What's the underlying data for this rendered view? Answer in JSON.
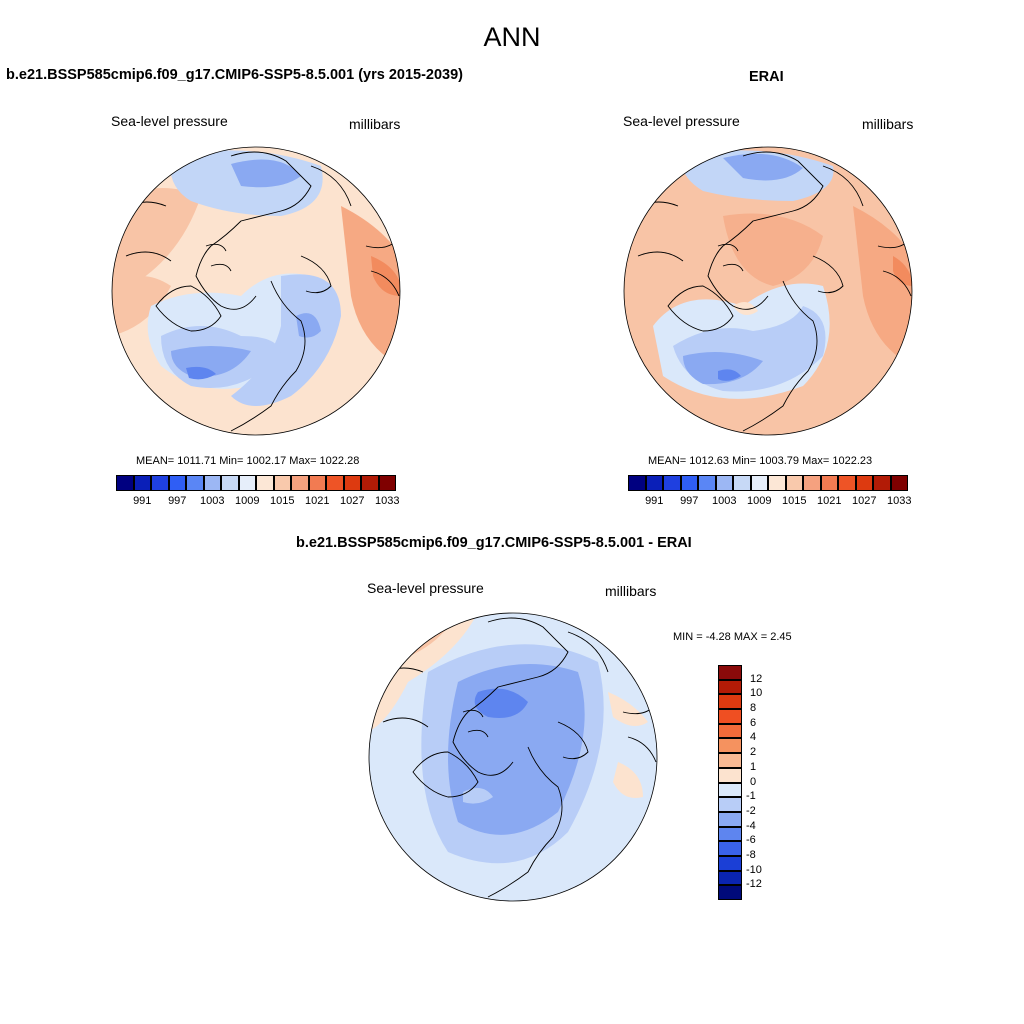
{
  "main_title": "ANN",
  "panels": [
    {
      "title": "b.e21.BSSP585cmip6.f09_g17.CMIP6-SSP5-8.5.001 (yrs 2015-2039)",
      "variable": "Sea-level pressure",
      "units": "millibars",
      "stats": "MEAN= 1011.71  Min= 1002.17  Max= 1022.28"
    },
    {
      "title": "ERAI",
      "variable": "Sea-level pressure",
      "units": "millibars",
      "stats": "MEAN= 1012.63  Min= 1003.79  Max= 1022.23"
    },
    {
      "title": "b.e21.BSSP585cmip6.f09_g17.CMIP6-SSP5-8.5.001 - ERAI",
      "variable": "Sea-level pressure",
      "units": "millibars",
      "stats": "MIN =  -4.28 MAX =   2.45"
    }
  ],
  "colorbar_abs": {
    "tick_labels": [
      "991",
      "997",
      "1003",
      "1009",
      "1015",
      "1021",
      "1027",
      "1033"
    ],
    "colors": [
      "#000080",
      "#0a1fb8",
      "#1f40e0",
      "#2f5ef5",
      "#5a86f5",
      "#9cb7f4",
      "#c7d9f6",
      "#e6eefa",
      "#fce7d6",
      "#f9c9ac",
      "#f5a17f",
      "#f27b52",
      "#ee5426",
      "#dd3a10",
      "#b21b06",
      "#7f0000"
    ]
  },
  "colorbar_diff": {
    "tick_labels": [
      "12",
      "10",
      "8",
      "6",
      "4",
      "2",
      "1",
      "0",
      "-1",
      "-2",
      "-4",
      "-6",
      "-8",
      "-10",
      "-12"
    ],
    "colors": [
      "#8a0a0a",
      "#b21b06",
      "#dd3a10",
      "#ef4f22",
      "#f26b3a",
      "#f5925f",
      "#f8b993",
      "#fce3cf",
      "#dae8fa",
      "#b8cdf7",
      "#8aa9f2",
      "#5e85ef",
      "#3a62ea",
      "#1b3fd6",
      "#0a24b0",
      "#000a7a"
    ]
  }
}
